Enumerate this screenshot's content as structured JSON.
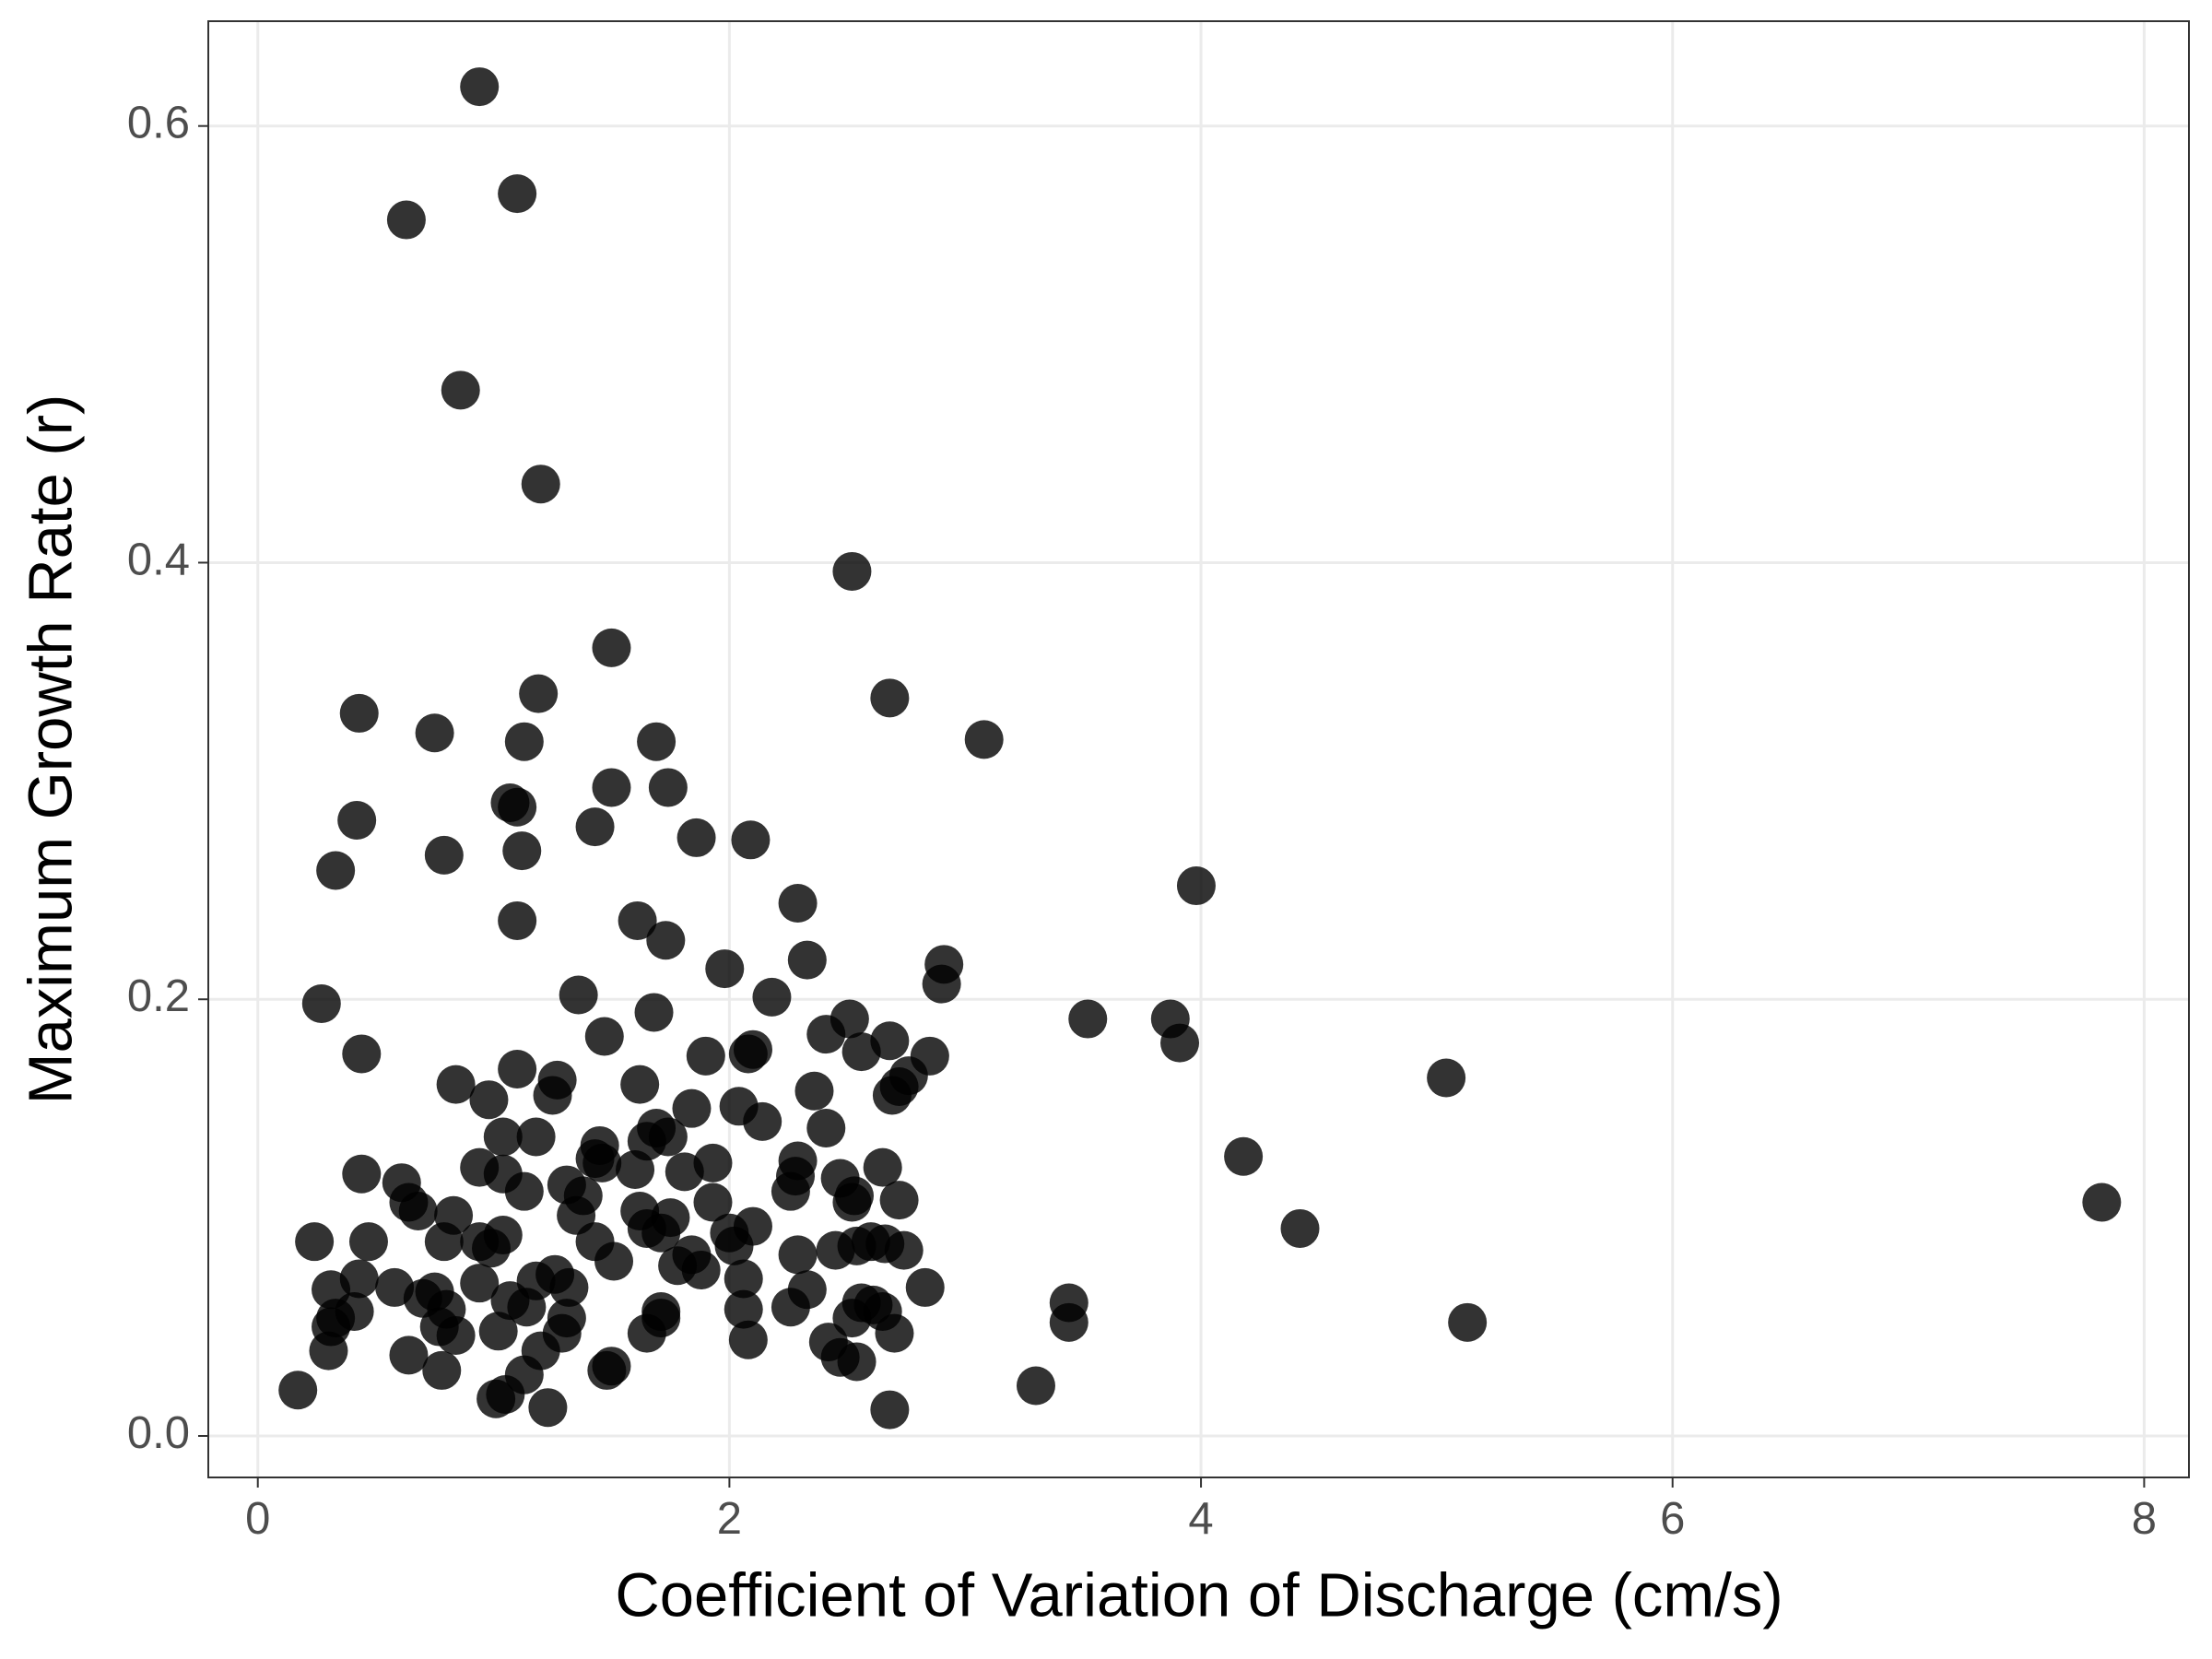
{
  "chart_data": {
    "type": "scatter",
    "x_label": "Coefficient of Variation of Discharge (cm/s)",
    "y_label": "Maximum Growth Rate (r)",
    "xlim": [
      -0.21,
      8.19
    ],
    "ylim": [
      -0.019,
      0.648
    ],
    "xticks": [
      0,
      2,
      4,
      6,
      8
    ],
    "yticks": [
      {
        "value": 0,
        "label": "0.0"
      },
      0.2,
      0.4,
      0.6
    ],
    "grid": true,
    "color": "#000000",
    "x": [
      0.94,
      0.63,
      1.1,
      0.86,
      1.2,
      2.52,
      1.5,
      0.43,
      1.19,
      2.68,
      3.08,
      0.75,
      1.13,
      1.69,
      1.5,
      1.74,
      1.07,
      1.1,
      0.42,
      1.43,
      1.86,
      2.09,
      1.12,
      0.79,
      0.33,
      3.98,
      2.29,
      1.1,
      1.61,
      1.73,
      2.33,
      2.91,
      1.98,
      2.9,
      1.36,
      2.18,
      0.27,
      1.68,
      2.51,
      3.52,
      3.87,
      2.41,
      1.47,
      2.68,
      3.91,
      2.1,
      2.56,
      0.44,
      2.08,
      1.9,
      2.85,
      1.1,
      2.76,
      5.04,
      1.27,
      2.72,
      1.62,
      0.84,
      2.36,
      1.25,
      2.69,
      0.98,
      2.04,
      1.84,
      2.14,
      2.41,
      1.69,
      1.74,
      1.04,
      1.18,
      1.65,
      1.45,
      4.18,
      1.43,
      2.29,
      1.93,
      1.46,
      0.94,
      2.65,
      1.6,
      1.81,
      1.04,
      0.44,
      2.28,
      2.47,
      0.61,
      1.31,
      1.13,
      2.26,
      2.53,
      1.38,
      2.72,
      0.64,
      7.82,
      1.93,
      2.52,
      0.68,
      1.62,
      1.35,
      0.83,
      1.75,
      2.1,
      1.65,
      4.42,
      1.71,
      2.0,
      1.04,
      0.24,
      0.47,
      2.6,
      0.79,
      0.94,
      1.43,
      2.66,
      2.54,
      2.02,
      0.99,
      2.45,
      2.74,
      2.29,
      1.84,
      1.51,
      1.78,
      1.88,
      0.43,
      1.26,
      1.18,
      2.06,
      0.94,
      2.83,
      0.58,
      1.32,
      0.31,
      2.33,
      0.75,
      0.7,
      1.07,
      3.44,
      2.56,
      2.61,
      2.26,
      1.14,
      0.8,
      2.06,
      0.41,
      2.65,
      1.71,
      2.52,
      0.33,
      1.31,
      3.44,
      5.13,
      1.71,
      0.31,
      0.77,
      1.02,
      2.7,
      1.65,
      1.29,
      0.84,
      2.08,
      2.42,
      1.2,
      0.3,
      0.64,
      2.47,
      2.54,
      1.5,
      1.48,
      0.78,
      1.13,
      3.3,
      0.17,
      1.05,
      1.01,
      1.23,
      2.68
    ],
    "y": [
      0.618,
      0.557,
      0.569,
      0.479,
      0.436,
      0.396,
      0.361,
      0.331,
      0.34,
      0.338,
      0.319,
      0.322,
      0.318,
      0.318,
      0.297,
      0.297,
      0.29,
      0.288,
      0.282,
      0.279,
      0.274,
      0.273,
      0.268,
      0.266,
      0.259,
      0.252,
      0.244,
      0.236,
      0.236,
      0.227,
      0.218,
      0.216,
      0.214,
      0.207,
      0.202,
      0.201,
      0.198,
      0.194,
      0.191,
      0.191,
      0.191,
      0.184,
      0.183,
      0.181,
      0.18,
      0.177,
      0.176,
      0.175,
      0.175,
      0.174,
      0.174,
      0.168,
      0.165,
      0.164,
      0.163,
      0.16,
      0.161,
      0.161,
      0.158,
      0.156,
      0.156,
      0.154,
      0.151,
      0.15,
      0.144,
      0.141,
      0.141,
      0.137,
      0.137,
      0.137,
      0.135,
      0.133,
      0.128,
      0.127,
      0.126,
      0.125,
      0.125,
      0.123,
      0.123,
      0.122,
      0.121,
      0.12,
      0.12,
      0.119,
      0.118,
      0.116,
      0.115,
      0.112,
      0.112,
      0.11,
      0.11,
      0.108,
      0.107,
      0.107,
      0.107,
      0.107,
      0.103,
      0.103,
      0.101,
      0.101,
      0.1,
      0.096,
      0.095,
      0.095,
      0.093,
      0.093,
      0.092,
      0.089,
      0.089,
      0.089,
      0.089,
      0.089,
      0.089,
      0.088,
      0.087,
      0.087,
      0.086,
      0.085,
      0.085,
      0.083,
      0.083,
      0.08,
      0.078,
      0.076,
      0.072,
      0.074,
      0.071,
      0.072,
      0.07,
      0.068,
      0.068,
      0.068,
      0.067,
      0.067,
      0.066,
      0.063,
      0.062,
      0.061,
      0.061,
      0.06,
      0.059,
      0.059,
      0.058,
      0.058,
      0.057,
      0.057,
      0.057,
      0.054,
      0.054,
      0.054,
      0.052,
      0.052,
      0.054,
      0.05,
      0.05,
      0.048,
      0.047,
      0.047,
      0.047,
      0.046,
      0.044,
      0.043,
      0.039,
      0.039,
      0.037,
      0.036,
      0.034,
      0.032,
      0.03,
      0.03,
      0.028,
      0.023,
      0.021,
      0.019,
      0.017,
      0.013,
      0.012
    ]
  }
}
